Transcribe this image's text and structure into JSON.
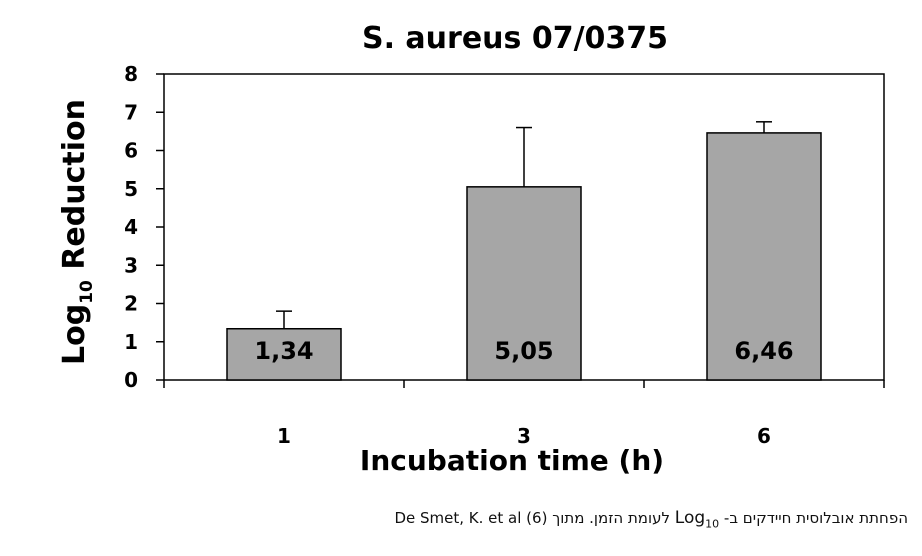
{
  "chart_data": {
    "type": "bar",
    "title": "S. aureus 07/0375",
    "ylabel_main": "Log",
    "ylabel_sub": "10",
    "ylabel_rest": " Reduction",
    "xlabel": "Incubation time (h)",
    "categories": [
      "1",
      "3",
      "6"
    ],
    "values": [
      1.34,
      5.05,
      6.46
    ],
    "data_labels": [
      "1,34",
      "5,05",
      "6,46"
    ],
    "error_upper": [
      1.8,
      6.6,
      6.75
    ],
    "ylim": [
      0,
      8
    ],
    "yticks": [
      "0",
      "1",
      "2",
      "3",
      "4",
      "5",
      "6",
      "7",
      "8"
    ],
    "grid": false,
    "bar_color": "#a6a6a6"
  },
  "caption": {
    "part1": "הפחתת אובלוסית חיידקים ב- ",
    "log_main": "Log",
    "log_sub": "10",
    "part2": " לעומת הזמן.  מתוך De Smet, K. et al (6)"
  }
}
